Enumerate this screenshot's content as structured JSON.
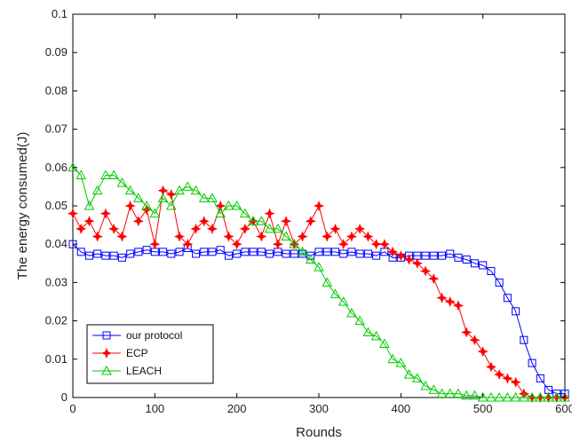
{
  "chart_data": {
    "type": "line",
    "title": "",
    "xlabel": "Rounds",
    "ylabel": "The energy consumed(J)",
    "xlim": [
      0,
      600
    ],
    "ylim": [
      0,
      0.1
    ],
    "x_ticks": [
      "0",
      "100",
      "200",
      "300",
      "400",
      "500",
      "600"
    ],
    "y_ticks": [
      "0",
      "0.01",
      "0.02",
      "0.03",
      "0.04",
      "0.05",
      "0.06",
      "0.07",
      "0.08",
      "0.09",
      "0.1"
    ],
    "grid": false,
    "legend_position": "bottom-left",
    "series": [
      {
        "name": "our protocol",
        "color": "#0000ff",
        "marker": "square",
        "points": [
          [
            0,
            0.04
          ],
          [
            10,
            0.038
          ],
          [
            20,
            0.037
          ],
          [
            30,
            0.0375
          ],
          [
            40,
            0.037
          ],
          [
            50,
            0.037
          ],
          [
            60,
            0.0365
          ],
          [
            70,
            0.0375
          ],
          [
            80,
            0.038
          ],
          [
            90,
            0.0385
          ],
          [
            100,
            0.038
          ],
          [
            110,
            0.038
          ],
          [
            120,
            0.0375
          ],
          [
            130,
            0.038
          ],
          [
            140,
            0.039
          ],
          [
            150,
            0.0375
          ],
          [
            160,
            0.038
          ],
          [
            170,
            0.038
          ],
          [
            180,
            0.0385
          ],
          [
            190,
            0.037
          ],
          [
            200,
            0.0375
          ],
          [
            210,
            0.038
          ],
          [
            220,
            0.038
          ],
          [
            230,
            0.038
          ],
          [
            240,
            0.0375
          ],
          [
            250,
            0.038
          ],
          [
            260,
            0.0375
          ],
          [
            270,
            0.0375
          ],
          [
            280,
            0.0375
          ],
          [
            290,
            0.037
          ],
          [
            300,
            0.038
          ],
          [
            310,
            0.038
          ],
          [
            320,
            0.038
          ],
          [
            330,
            0.0375
          ],
          [
            340,
            0.038
          ],
          [
            350,
            0.0375
          ],
          [
            360,
            0.0375
          ],
          [
            370,
            0.037
          ],
          [
            380,
            0.038
          ],
          [
            390,
            0.0365
          ],
          [
            400,
            0.0365
          ],
          [
            410,
            0.037
          ],
          [
            420,
            0.037
          ],
          [
            430,
            0.037
          ],
          [
            440,
            0.037
          ],
          [
            450,
            0.037
          ],
          [
            460,
            0.0375
          ],
          [
            470,
            0.0365
          ],
          [
            480,
            0.036
          ],
          [
            490,
            0.035
          ],
          [
            500,
            0.0345
          ],
          [
            510,
            0.033
          ],
          [
            520,
            0.03
          ],
          [
            530,
            0.026
          ],
          [
            540,
            0.0225
          ],
          [
            550,
            0.015
          ],
          [
            560,
            0.009
          ],
          [
            570,
            0.005
          ],
          [
            580,
            0.002
          ],
          [
            590,
            0.001
          ],
          [
            600,
            0.001
          ]
        ]
      },
      {
        "name": "ECP",
        "color": "#ff0000",
        "marker": "star",
        "points": [
          [
            0,
            0.048
          ],
          [
            10,
            0.044
          ],
          [
            20,
            0.046
          ],
          [
            30,
            0.042
          ],
          [
            40,
            0.048
          ],
          [
            50,
            0.044
          ],
          [
            60,
            0.042
          ],
          [
            70,
            0.05
          ],
          [
            80,
            0.046
          ],
          [
            90,
            0.049
          ],
          [
            100,
            0.04
          ],
          [
            110,
            0.054
          ],
          [
            120,
            0.053
          ],
          [
            130,
            0.042
          ],
          [
            140,
            0.04
          ],
          [
            150,
            0.044
          ],
          [
            160,
            0.046
          ],
          [
            170,
            0.044
          ],
          [
            180,
            0.05
          ],
          [
            190,
            0.042
          ],
          [
            200,
            0.04
          ],
          [
            210,
            0.044
          ],
          [
            220,
            0.046
          ],
          [
            230,
            0.042
          ],
          [
            240,
            0.048
          ],
          [
            250,
            0.04
          ],
          [
            260,
            0.046
          ],
          [
            270,
            0.04
          ],
          [
            280,
            0.042
          ],
          [
            290,
            0.046
          ],
          [
            300,
            0.05
          ],
          [
            310,
            0.042
          ],
          [
            320,
            0.044
          ],
          [
            330,
            0.04
          ],
          [
            340,
            0.042
          ],
          [
            350,
            0.044
          ],
          [
            360,
            0.042
          ],
          [
            370,
            0.04
          ],
          [
            380,
            0.04
          ],
          [
            390,
            0.038
          ],
          [
            400,
            0.037
          ],
          [
            410,
            0.036
          ],
          [
            420,
            0.035
          ],
          [
            430,
            0.033
          ],
          [
            440,
            0.031
          ],
          [
            450,
            0.026
          ],
          [
            460,
            0.025
          ],
          [
            470,
            0.024
          ],
          [
            480,
            0.017
          ],
          [
            490,
            0.015
          ],
          [
            500,
            0.012
          ],
          [
            510,
            0.008
          ],
          [
            520,
            0.006
          ],
          [
            530,
            0.005
          ],
          [
            540,
            0.004
          ],
          [
            550,
            0.001
          ],
          [
            560,
            0.0
          ],
          [
            570,
            0.0
          ],
          [
            580,
            0.0
          ],
          [
            590,
            0.0
          ],
          [
            600,
            0.0
          ]
        ]
      },
      {
        "name": "LEACH",
        "color": "#00cc00",
        "marker": "triangle",
        "points": [
          [
            0,
            0.06
          ],
          [
            10,
            0.058
          ],
          [
            20,
            0.05
          ],
          [
            30,
            0.054
          ],
          [
            40,
            0.058
          ],
          [
            50,
            0.058
          ],
          [
            60,
            0.056
          ],
          [
            70,
            0.054
          ],
          [
            80,
            0.052
          ],
          [
            90,
            0.05
          ],
          [
            100,
            0.048
          ],
          [
            110,
            0.052
          ],
          [
            120,
            0.05
          ],
          [
            130,
            0.054
          ],
          [
            140,
            0.055
          ],
          [
            150,
            0.054
          ],
          [
            160,
            0.052
          ],
          [
            170,
            0.052
          ],
          [
            180,
            0.048
          ],
          [
            190,
            0.05
          ],
          [
            200,
            0.05
          ],
          [
            210,
            0.048
          ],
          [
            220,
            0.046
          ],
          [
            230,
            0.046
          ],
          [
            240,
            0.044
          ],
          [
            250,
            0.044
          ],
          [
            260,
            0.042
          ],
          [
            270,
            0.04
          ],
          [
            280,
            0.038
          ],
          [
            290,
            0.036
          ],
          [
            300,
            0.034
          ],
          [
            310,
            0.03
          ],
          [
            320,
            0.027
          ],
          [
            330,
            0.025
          ],
          [
            340,
            0.022
          ],
          [
            350,
            0.02
          ],
          [
            360,
            0.017
          ],
          [
            370,
            0.016
          ],
          [
            380,
            0.014
          ],
          [
            390,
            0.01
          ],
          [
            400,
            0.009
          ],
          [
            410,
            0.006
          ],
          [
            420,
            0.005
          ],
          [
            430,
            0.003
          ],
          [
            440,
            0.002
          ],
          [
            450,
            0.001
          ],
          [
            460,
            0.001
          ],
          [
            470,
            0.001
          ],
          [
            480,
            0.0005
          ],
          [
            490,
            0.0005
          ],
          [
            500,
            0.0
          ],
          [
            510,
            0.0
          ],
          [
            520,
            0.0
          ],
          [
            530,
            0.0
          ],
          [
            540,
            0.0
          ],
          [
            550,
            0.0
          ],
          [
            560,
            0.0
          ],
          [
            570,
            0.0
          ],
          [
            580,
            0.0
          ],
          [
            590,
            0.0
          ],
          [
            600,
            0.0
          ]
        ]
      }
    ]
  }
}
